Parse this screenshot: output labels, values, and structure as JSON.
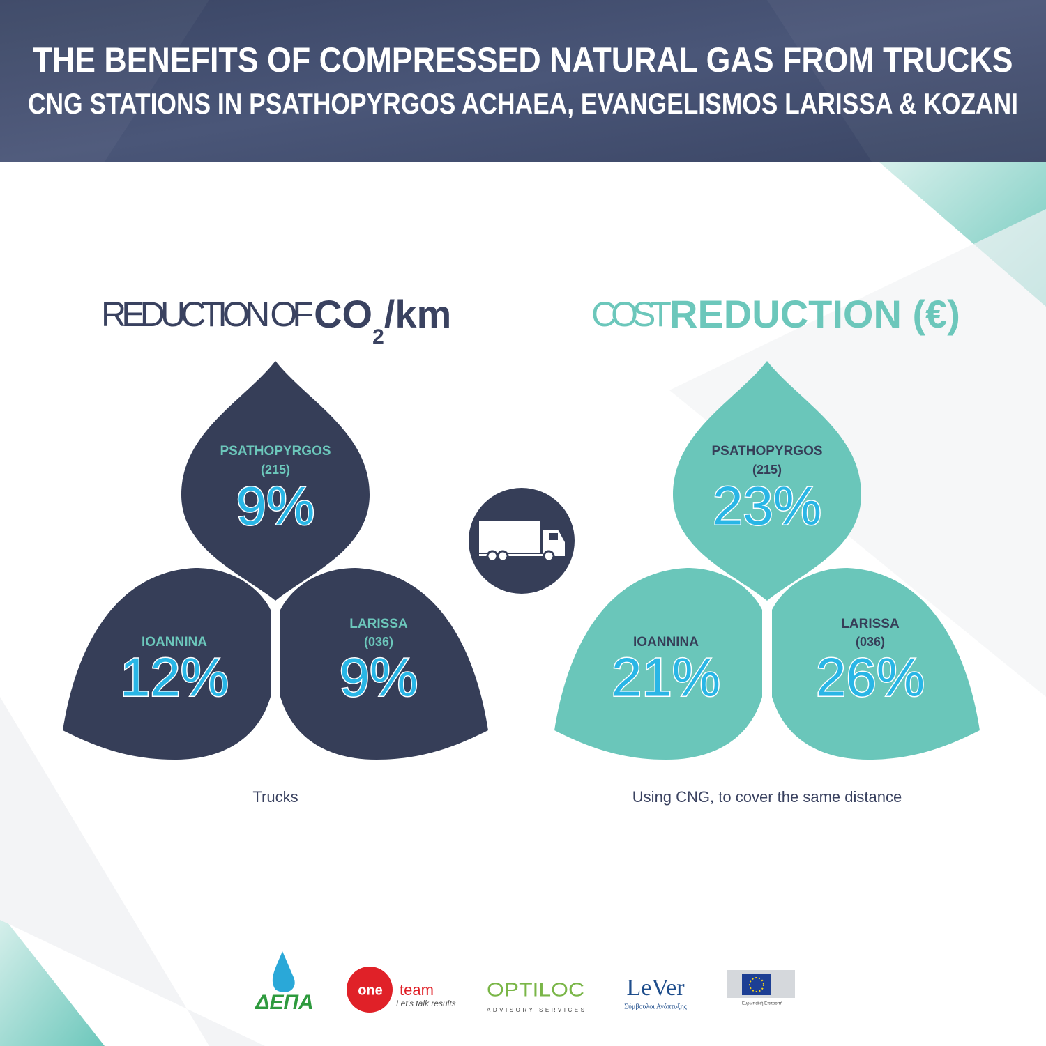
{
  "header": {
    "title": "THE BENEFITS OF COMPRESSED NATURAL GAS FROM TRUCKS",
    "subtitle": "CNG STATIONS IN PSATHOPYRGOS ACHAEA, EVANGELISMOS LARISSA & KOZANI"
  },
  "panels": [
    {
      "heading": {
        "normal": "REDUCTION OF ",
        "bold": "CO",
        "subscript": "2",
        "bold_end": "/km"
      },
      "petals": [
        {
          "name": "PSATHOPYRGOS",
          "code": "(215)",
          "value": "9%"
        },
        {
          "name": "IOANNINA",
          "value": "12%"
        },
        {
          "name": "LARISSA",
          "code": "(036)",
          "value": "9%"
        }
      ],
      "caption": "Trucks"
    },
    {
      "heading": {
        "normal": "COST ",
        "bold": "REDUCTION (€)"
      },
      "petals": [
        {
          "name": "PSATHOPYRGOS",
          "code": "(215)",
          "value": "23%"
        },
        {
          "name": "IOANNINA",
          "value": "21%"
        },
        {
          "name": "LARISSA",
          "code": "(036)",
          "value": "26%"
        }
      ],
      "caption": "Using CNG, to cover the same distance"
    }
  ],
  "logos": {
    "depa": "ΔΕΠΑ",
    "oneteam_a": "one",
    "oneteam_b": "team",
    "oneteam_tag": "Let's talk results",
    "optiloc": "OPTILOC",
    "optiloc_tag": "ADVISORY SERVICES",
    "lever": "LeVer",
    "lever_tag": "Σύμβουλοι Ανάπτυξης",
    "eu": "Ευρωπαϊκή Επιτροπή"
  }
}
